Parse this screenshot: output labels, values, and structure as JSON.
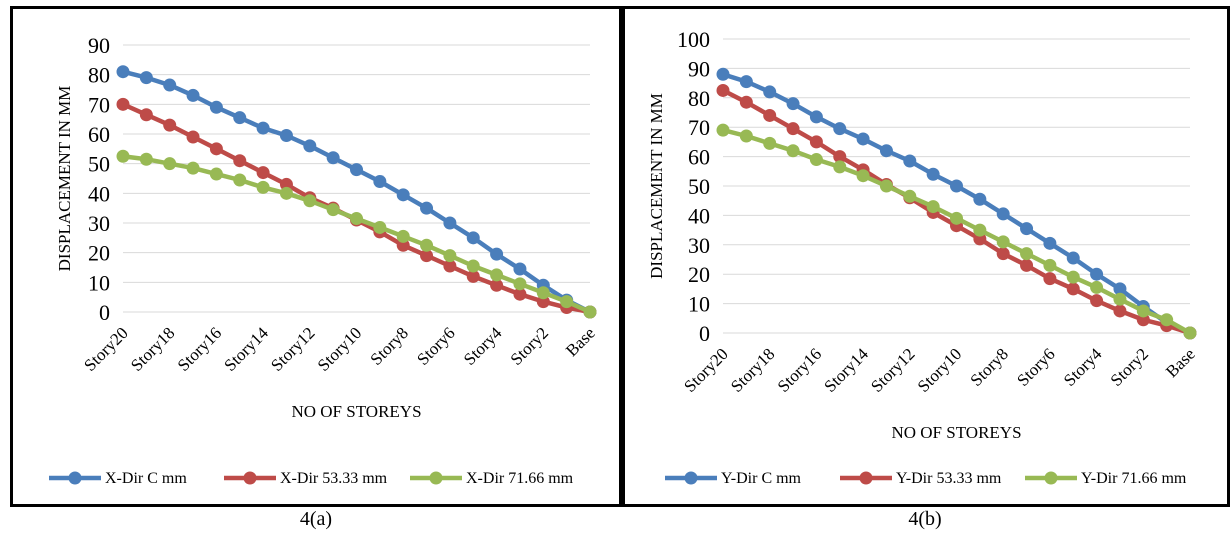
{
  "captions": [
    "4(a)",
    "4(b)"
  ],
  "chart_data": [
    {
      "type": "line",
      "xlabel": "NO OF STOREYS",
      "ylabel": "DISPLACEMENT IN MM",
      "ylim": [
        0,
        90
      ],
      "ytick_step": 10,
      "grid": true,
      "legend_position": "bottom",
      "categories": [
        "Story20",
        "Story19",
        "Story18",
        "Story17",
        "Story16",
        "Story15",
        "Story14",
        "Story13",
        "Story12",
        "Story11",
        "Story10",
        "Story9",
        "Story8",
        "Story7",
        "Story6",
        "Story5",
        "Story4",
        "Story3",
        "Story2",
        "Story1",
        "Base"
      ],
      "tick_labels": [
        "Story20",
        "Story18",
        "Story16",
        "Story14",
        "Story12",
        "Story10",
        "Story8",
        "Story6",
        "Story4",
        "Story2",
        "Base"
      ],
      "series": [
        {
          "name": "X-Dir C mm",
          "color": "#4a7ebb",
          "values": [
            81,
            79,
            76.5,
            73,
            69,
            65.5,
            62,
            59.5,
            56,
            52,
            48,
            44,
            39.5,
            35,
            30,
            25,
            19.5,
            14.5,
            9,
            4,
            0
          ]
        },
        {
          "name": "X-Dir 53.33 mm",
          "color": "#be4b48",
          "values": [
            70,
            66.5,
            63,
            59,
            55,
            51,
            47,
            43,
            38.5,
            35,
            31,
            27,
            22.5,
            19,
            15.5,
            12,
            9,
            6,
            3.5,
            1.5,
            0
          ]
        },
        {
          "name": "X-Dir 71.66 mm",
          "color": "#98b954",
          "values": [
            52.5,
            51.5,
            50,
            48.5,
            46.5,
            44.5,
            42,
            40,
            37.5,
            34.5,
            31.5,
            28.5,
            25.5,
            22.5,
            19,
            15.5,
            12.5,
            9.5,
            6.5,
            3.5,
            0
          ]
        }
      ]
    },
    {
      "type": "line",
      "xlabel": "NO OF STOREYS",
      "ylabel": "DISPLACEMENT IN  MM",
      "ylim": [
        0,
        100
      ],
      "ytick_step": 10,
      "grid": true,
      "legend_position": "bottom",
      "categories": [
        "Story20",
        "Story19",
        "Story18",
        "Story17",
        "Story16",
        "Story15",
        "Story14",
        "Story13",
        "Story12",
        "Story11",
        "Story10",
        "Story9",
        "Story8",
        "Story7",
        "Story6",
        "Story5",
        "Story4",
        "Story3",
        "Story2",
        "Story1",
        "Base"
      ],
      "tick_labels": [
        "Story20",
        "Story18",
        "Story16",
        "Story14",
        "Story12",
        "Story10",
        "Story8",
        "Story6",
        "Story4",
        "Story2",
        "Base"
      ],
      "series": [
        {
          "name": "Y-Dir C mm",
          "color": "#4a7ebb",
          "values": [
            88,
            85.5,
            82,
            78,
            73.5,
            69.5,
            66,
            62,
            58.5,
            54,
            50,
            45.5,
            40.5,
            35.5,
            30.5,
            25.5,
            20,
            15,
            9,
            3.5,
            0
          ]
        },
        {
          "name": "Y-Dir 53.33 mm",
          "color": "#be4b48",
          "values": [
            82.5,
            78.5,
            74,
            69.5,
            65,
            60,
            55.5,
            50.5,
            46,
            41,
            36.5,
            32,
            27,
            23,
            18.5,
            15,
            11,
            7.5,
            4.5,
            2.5,
            0
          ]
        },
        {
          "name": "Y-Dir 71.66 mm",
          "color": "#98b954",
          "values": [
            69,
            67,
            64.5,
            62,
            59,
            56.5,
            53.5,
            50,
            46.5,
            43,
            39,
            35,
            31,
            27,
            23,
            19,
            15.5,
            11.5,
            7.5,
            4.5,
            0
          ]
        }
      ]
    }
  ]
}
